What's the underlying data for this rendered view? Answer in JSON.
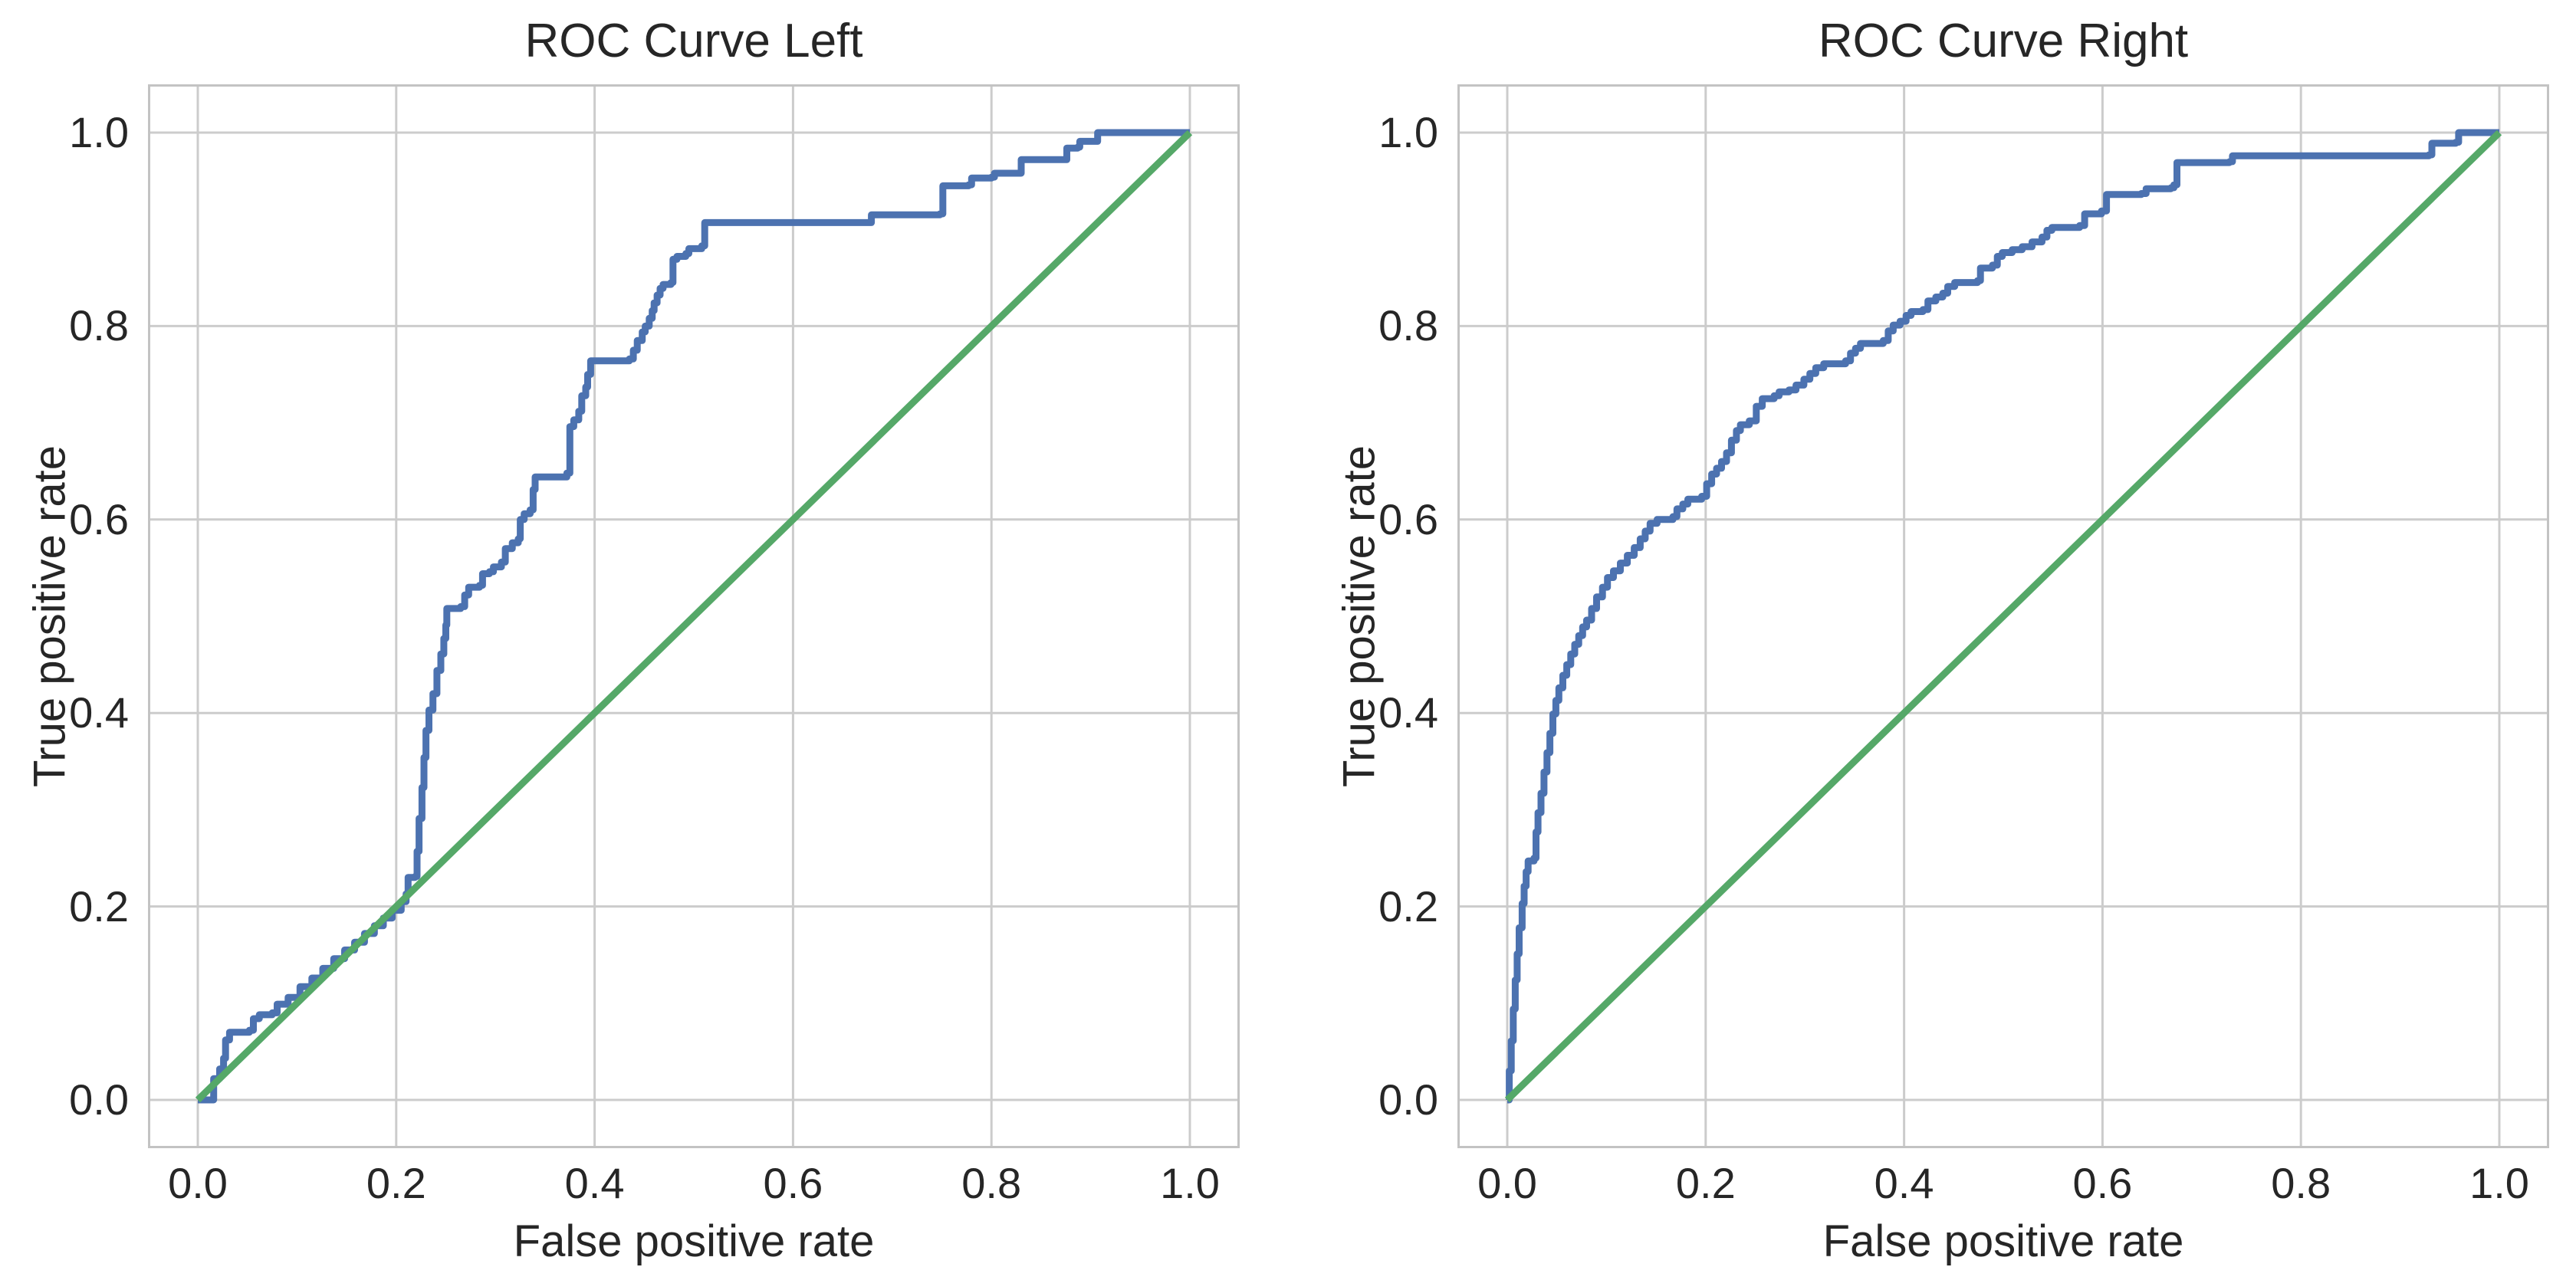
{
  "figure": {
    "background": "#ffffff",
    "colors": {
      "roc_line": "#4C72B0",
      "chance_line": "#55A868",
      "grid": "#cccccc",
      "spine": "#c3c3c3",
      "text": "#262626"
    }
  },
  "chart_data": [
    {
      "type": "line",
      "title": "ROC Curve Left",
      "xlabel": "False positive rate",
      "ylabel": "True positive rate",
      "xlim": [
        -0.05,
        1.05
      ],
      "ylim": [
        -0.05,
        1.05
      ],
      "grid": true,
      "legend": "none",
      "xticks": [
        "0.0",
        "0.2",
        "0.4",
        "0.6",
        "0.8",
        "1.0"
      ],
      "yticks": [
        "0.0",
        "0.2",
        "0.4",
        "0.6",
        "0.8",
        "1.0"
      ],
      "series": [
        {
          "name": "roc-curve",
          "color": "#4C72B0",
          "style": "steps-post",
          "points": [
            [
              0.0,
              0.0
            ],
            [
              0.016,
              0.0
            ],
            [
              0.016,
              0.022
            ],
            [
              0.022,
              0.032
            ],
            [
              0.026,
              0.043
            ],
            [
              0.028,
              0.062
            ],
            [
              0.032,
              0.07
            ],
            [
              0.052,
              0.072
            ],
            [
              0.056,
              0.084
            ],
            [
              0.062,
              0.088
            ],
            [
              0.075,
              0.09
            ],
            [
              0.08,
              0.099
            ],
            [
              0.091,
              0.106
            ],
            [
              0.103,
              0.117
            ],
            [
              0.115,
              0.126
            ],
            [
              0.126,
              0.136
            ],
            [
              0.137,
              0.146
            ],
            [
              0.148,
              0.155
            ],
            [
              0.158,
              0.163
            ],
            [
              0.168,
              0.172
            ],
            [
              0.178,
              0.18
            ],
            [
              0.187,
              0.188
            ],
            [
              0.196,
              0.196
            ],
            [
              0.205,
              0.205
            ],
            [
              0.21,
              0.213
            ],
            [
              0.212,
              0.23
            ],
            [
              0.219,
              0.231
            ],
            [
              0.221,
              0.257
            ],
            [
              0.223,
              0.291
            ],
            [
              0.226,
              0.323
            ],
            [
              0.228,
              0.354
            ],
            [
              0.23,
              0.382
            ],
            [
              0.233,
              0.403
            ],
            [
              0.237,
              0.42
            ],
            [
              0.241,
              0.444
            ],
            [
              0.245,
              0.461
            ],
            [
              0.248,
              0.477
            ],
            [
              0.25,
              0.491
            ],
            [
              0.251,
              0.508
            ],
            [
              0.265,
              0.51
            ],
            [
              0.269,
              0.522
            ],
            [
              0.273,
              0.53
            ],
            [
              0.284,
              0.532
            ],
            [
              0.287,
              0.544
            ],
            [
              0.294,
              0.546
            ],
            [
              0.298,
              0.551
            ],
            [
              0.306,
              0.556
            ],
            [
              0.31,
              0.57
            ],
            [
              0.317,
              0.576
            ],
            [
              0.323,
              0.58
            ],
            [
              0.325,
              0.6
            ],
            [
              0.329,
              0.606
            ],
            [
              0.335,
              0.61
            ],
            [
              0.338,
              0.631
            ],
            [
              0.34,
              0.644
            ],
            [
              0.372,
              0.648
            ],
            [
              0.375,
              0.696
            ],
            [
              0.379,
              0.703
            ],
            [
              0.384,
              0.712
            ],
            [
              0.387,
              0.728
            ],
            [
              0.391,
              0.737
            ],
            [
              0.393,
              0.75
            ],
            [
              0.396,
              0.764
            ],
            [
              0.435,
              0.766
            ],
            [
              0.439,
              0.775
            ],
            [
              0.443,
              0.785
            ],
            [
              0.448,
              0.794
            ],
            [
              0.451,
              0.8
            ],
            [
              0.455,
              0.808
            ],
            [
              0.458,
              0.816
            ],
            [
              0.46,
              0.824
            ],
            [
              0.463,
              0.832
            ],
            [
              0.466,
              0.839
            ],
            [
              0.469,
              0.843
            ],
            [
              0.477,
              0.845
            ],
            [
              0.479,
              0.869
            ],
            [
              0.483,
              0.872
            ],
            [
              0.492,
              0.875
            ],
            [
              0.495,
              0.88
            ],
            [
              0.508,
              0.883
            ],
            [
              0.511,
              0.907
            ],
            [
              0.676,
              0.907
            ],
            [
              0.679,
              0.915
            ],
            [
              0.748,
              0.916
            ],
            [
              0.751,
              0.945
            ],
            [
              0.777,
              0.946
            ],
            [
              0.78,
              0.953
            ],
            [
              0.8,
              0.954
            ],
            [
              0.803,
              0.958
            ],
            [
              0.828,
              0.958
            ],
            [
              0.83,
              0.972
            ],
            [
              0.874,
              0.972
            ],
            [
              0.876,
              0.984
            ],
            [
              0.887,
              0.985
            ],
            [
              0.889,
              0.991
            ],
            [
              0.905,
              0.991
            ],
            [
              0.907,
              1.0
            ],
            [
              1.0,
              1.0
            ]
          ]
        },
        {
          "name": "chance-diagonal",
          "color": "#55A868",
          "style": "line",
          "points": [
            [
              0.0,
              0.0
            ],
            [
              1.0,
              1.0
            ]
          ]
        }
      ]
    },
    {
      "type": "line",
      "title": "ROC Curve Right",
      "xlabel": "False positive rate",
      "ylabel": "True positive rate",
      "xlim": [
        -0.05,
        1.05
      ],
      "ylim": [
        -0.05,
        1.05
      ],
      "grid": true,
      "legend": "none",
      "xticks": [
        "0.0",
        "0.2",
        "0.4",
        "0.6",
        "0.8",
        "1.0"
      ],
      "yticks": [
        "0.0",
        "0.2",
        "0.4",
        "0.6",
        "0.8",
        "1.0"
      ],
      "series": [
        {
          "name": "roc-curve",
          "color": "#4C72B0",
          "style": "steps-post",
          "points": [
            [
              0.0,
              0.0
            ],
            [
              0.002,
              0.03
            ],
            [
              0.004,
              0.061
            ],
            [
              0.006,
              0.094
            ],
            [
              0.008,
              0.124
            ],
            [
              0.01,
              0.151
            ],
            [
              0.012,
              0.178
            ],
            [
              0.015,
              0.203
            ],
            [
              0.017,
              0.221
            ],
            [
              0.019,
              0.236
            ],
            [
              0.021,
              0.247
            ],
            [
              0.027,
              0.25
            ],
            [
              0.029,
              0.277
            ],
            [
              0.031,
              0.297
            ],
            [
              0.034,
              0.317
            ],
            [
              0.037,
              0.339
            ],
            [
              0.04,
              0.359
            ],
            [
              0.043,
              0.379
            ],
            [
              0.046,
              0.399
            ],
            [
              0.049,
              0.413
            ],
            [
              0.052,
              0.426
            ],
            [
              0.056,
              0.439
            ],
            [
              0.06,
              0.45
            ],
            [
              0.064,
              0.461
            ],
            [
              0.068,
              0.471
            ],
            [
              0.072,
              0.48
            ],
            [
              0.076,
              0.489
            ],
            [
              0.08,
              0.496
            ],
            [
              0.085,
              0.508
            ],
            [
              0.09,
              0.52
            ],
            [
              0.096,
              0.53
            ],
            [
              0.101,
              0.54
            ],
            [
              0.107,
              0.547
            ],
            [
              0.114,
              0.555
            ],
            [
              0.121,
              0.563
            ],
            [
              0.128,
              0.571
            ],
            [
              0.134,
              0.58
            ],
            [
              0.139,
              0.588
            ],
            [
              0.144,
              0.596
            ],
            [
              0.151,
              0.6
            ],
            [
              0.167,
              0.603
            ],
            [
              0.171,
              0.611
            ],
            [
              0.177,
              0.616
            ],
            [
              0.182,
              0.621
            ],
            [
              0.196,
              0.624
            ],
            [
              0.201,
              0.637
            ],
            [
              0.206,
              0.647
            ],
            [
              0.211,
              0.653
            ],
            [
              0.216,
              0.66
            ],
            [
              0.221,
              0.669
            ],
            [
              0.226,
              0.682
            ],
            [
              0.231,
              0.692
            ],
            [
              0.235,
              0.698
            ],
            [
              0.244,
              0.702
            ],
            [
              0.251,
              0.717
            ],
            [
              0.257,
              0.725
            ],
            [
              0.269,
              0.728
            ],
            [
              0.274,
              0.732
            ],
            [
              0.284,
              0.734
            ],
            [
              0.291,
              0.739
            ],
            [
              0.299,
              0.745
            ],
            [
              0.305,
              0.751
            ],
            [
              0.311,
              0.757
            ],
            [
              0.319,
              0.761
            ],
            [
              0.341,
              0.764
            ],
            [
              0.346,
              0.772
            ],
            [
              0.351,
              0.777
            ],
            [
              0.356,
              0.782
            ],
            [
              0.379,
              0.785
            ],
            [
              0.384,
              0.795
            ],
            [
              0.389,
              0.801
            ],
            [
              0.396,
              0.805
            ],
            [
              0.402,
              0.811
            ],
            [
              0.407,
              0.815
            ],
            [
              0.419,
              0.817
            ],
            [
              0.424,
              0.826
            ],
            [
              0.432,
              0.83
            ],
            [
              0.439,
              0.834
            ],
            [
              0.444,
              0.841
            ],
            [
              0.451,
              0.845
            ],
            [
              0.474,
              0.847
            ],
            [
              0.477,
              0.86
            ],
            [
              0.489,
              0.863
            ],
            [
              0.494,
              0.872
            ],
            [
              0.499,
              0.876
            ],
            [
              0.509,
              0.879
            ],
            [
              0.519,
              0.882
            ],
            [
              0.529,
              0.887
            ],
            [
              0.539,
              0.892
            ],
            [
              0.544,
              0.899
            ],
            [
              0.549,
              0.902
            ],
            [
              0.577,
              0.904
            ],
            [
              0.582,
              0.916
            ],
            [
              0.599,
              0.919
            ],
            [
              0.604,
              0.936
            ],
            [
              0.639,
              0.937
            ],
            [
              0.644,
              0.942
            ],
            [
              0.669,
              0.943
            ],
            [
              0.672,
              0.946
            ],
            [
              0.675,
              0.969
            ],
            [
              0.728,
              0.97
            ],
            [
              0.731,
              0.976
            ],
            [
              0.929,
              0.977
            ],
            [
              0.932,
              0.989
            ],
            [
              0.956,
              0.99
            ],
            [
              0.959,
              1.0
            ],
            [
              1.0,
              1.0
            ]
          ]
        },
        {
          "name": "chance-diagonal",
          "color": "#55A868",
          "style": "line",
          "points": [
            [
              0.0,
              0.0
            ],
            [
              1.0,
              1.0
            ]
          ]
        }
      ]
    }
  ]
}
